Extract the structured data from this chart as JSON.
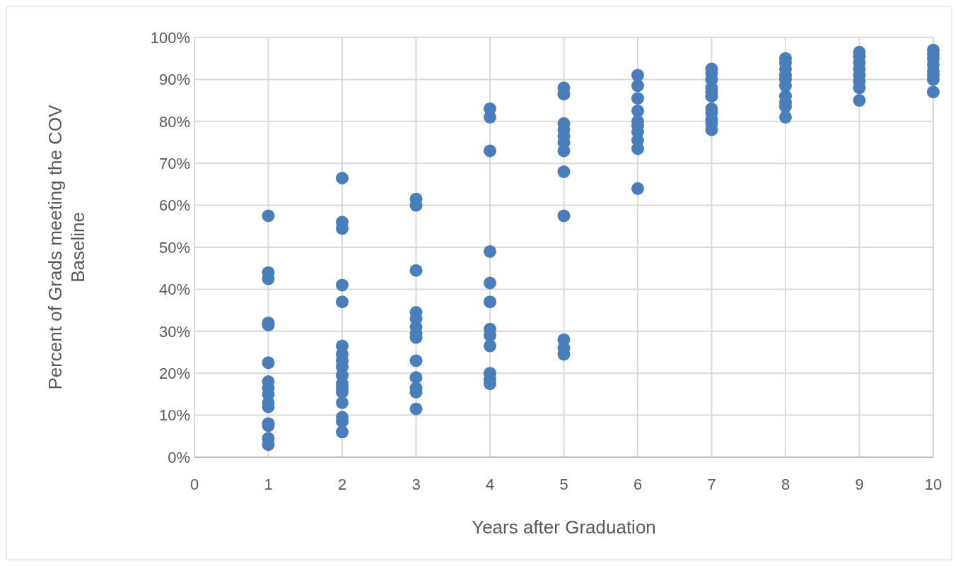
{
  "chart_data": {
    "type": "scatter",
    "xlabel": "Years after Graduation",
    "ylabel": "Percent of Grads meeting the COV Baseline",
    "x": [
      1,
      1,
      1,
      1,
      1,
      1,
      1,
      1,
      1,
      1,
      1,
      1,
      1,
      1,
      1,
      2,
      2,
      2,
      2,
      2,
      2,
      2,
      2,
      2,
      2,
      2,
      2,
      2,
      2,
      2,
      2,
      2,
      3,
      3,
      3,
      3,
      3,
      3,
      3,
      3,
      3,
      3,
      3,
      3,
      3,
      4,
      4,
      4,
      4,
      4,
      4,
      4,
      4,
      4,
      4,
      4,
      4,
      5,
      5,
      5,
      5,
      5,
      5,
      5,
      5,
      5,
      5,
      5,
      5,
      6,
      6,
      6,
      6,
      6,
      6,
      6,
      6,
      6,
      6,
      7,
      7,
      7,
      7,
      7,
      7,
      7,
      7,
      7,
      7,
      7,
      8,
      8,
      8,
      8,
      8,
      8,
      8,
      8,
      8,
      8,
      9,
      9,
      9,
      9,
      9,
      9,
      9,
      9,
      10,
      10,
      10,
      10,
      10,
      10,
      10,
      10
    ],
    "series": [
      {
        "color": "#4a7ebb",
        "values": [
          57.5,
          44,
          42.5,
          32,
          31.5,
          22.5,
          18,
          16.5,
          15,
          13,
          12,
          8,
          7.5,
          4.5,
          3,
          66.5,
          56,
          54.5,
          41,
          37,
          26.5,
          24.5,
          23,
          21.5,
          19.5,
          17.5,
          16.5,
          15.5,
          13,
          9.5,
          8.5,
          6,
          61.5,
          60,
          44.5,
          34.5,
          33,
          31,
          29.5,
          28.5,
          23,
          19,
          16.5,
          15.5,
          11.5,
          83,
          81,
          73,
          49,
          41.5,
          37,
          30.5,
          29,
          26.5,
          20,
          18.5,
          17.5,
          88,
          86.5,
          79.5,
          78,
          76.5,
          75,
          73,
          68,
          57.5,
          28,
          26,
          24.5,
          91,
          88.5,
          85.5,
          82.5,
          80,
          79,
          77.5,
          75.5,
          73.5,
          64,
          92.5,
          91.5,
          90,
          88,
          87,
          86,
          83,
          82,
          80.5,
          79.5,
          78,
          95,
          94,
          92.5,
          91,
          90,
          88.5,
          86,
          84.5,
          83.5,
          81,
          96.5,
          95.5,
          94,
          92.5,
          91,
          89.5,
          88,
          85,
          97,
          96,
          95,
          93.5,
          92,
          91,
          90,
          87
        ]
      }
    ],
    "xlim": [
      0,
      10
    ],
    "xticks": [
      0,
      1,
      2,
      3,
      4,
      5,
      6,
      7,
      8,
      9,
      10
    ],
    "ylim": [
      0,
      100
    ],
    "yticks": [
      {
        "value": 0,
        "label": "0%"
      },
      {
        "value": 10,
        "label": "10%"
      },
      {
        "value": 20,
        "label": "20%"
      },
      {
        "value": 30,
        "label": "30%"
      },
      {
        "value": 40,
        "label": "40%"
      },
      {
        "value": 50,
        "label": "50%"
      },
      {
        "value": 60,
        "label": "60%"
      },
      {
        "value": 70,
        "label": "70%"
      },
      {
        "value": 80,
        "label": "80%"
      },
      {
        "value": 90,
        "label": "90%"
      },
      {
        "value": 100,
        "label": "100%"
      }
    ],
    "grid": true,
    "marker": "circle"
  }
}
